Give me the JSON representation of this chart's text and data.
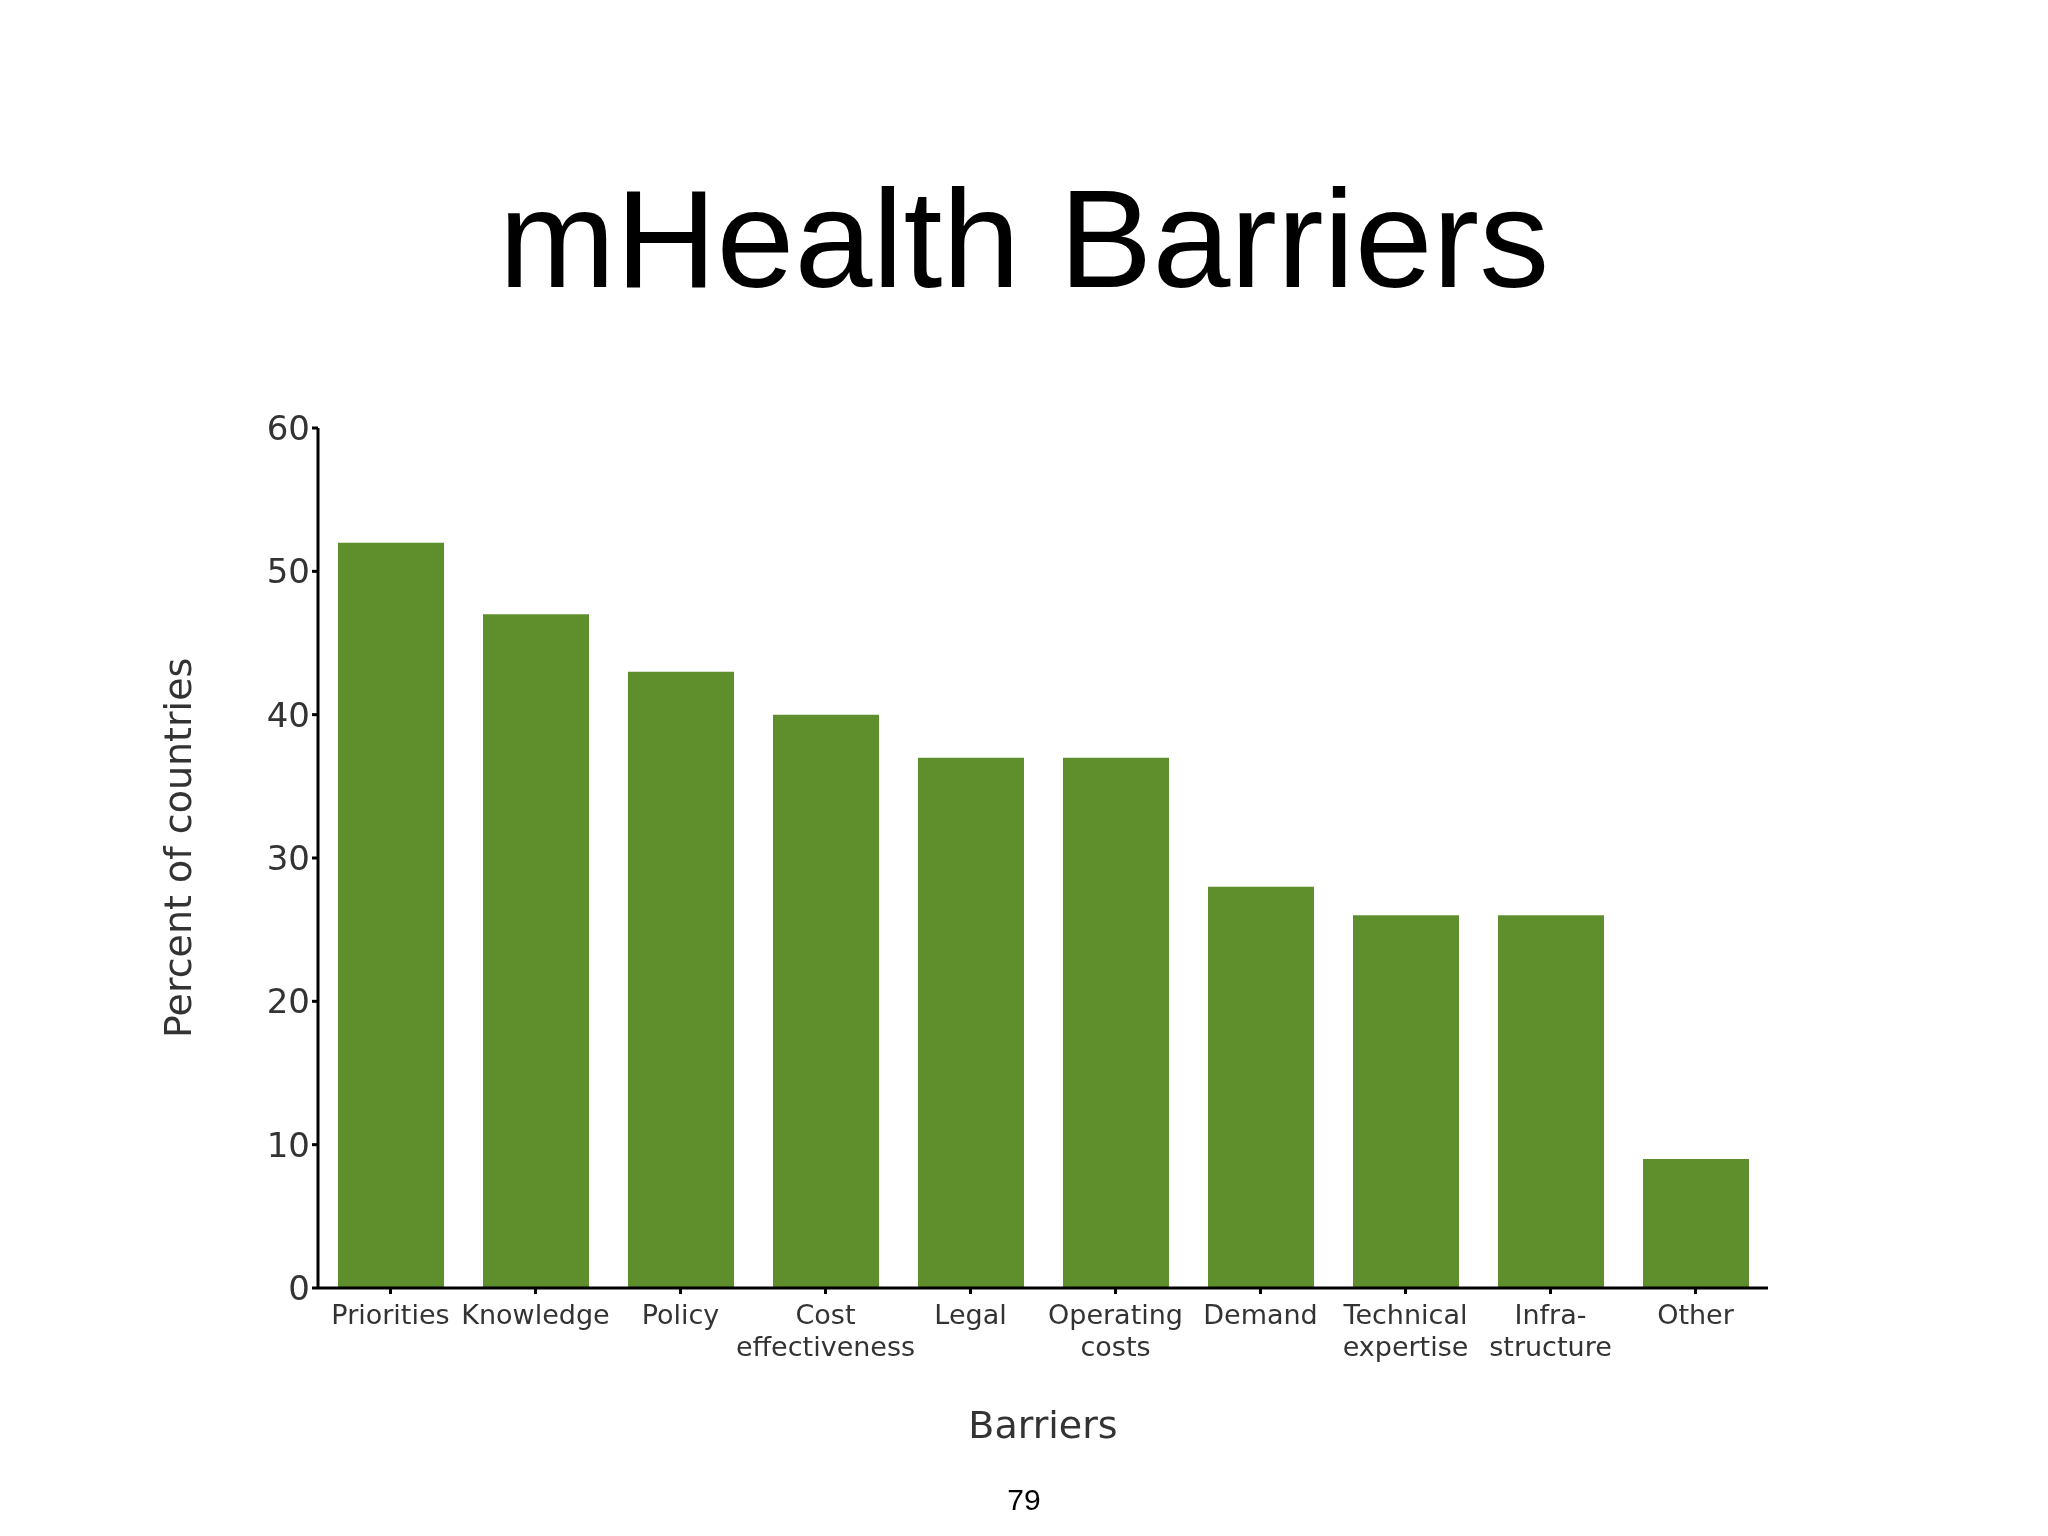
{
  "chart_data": {
    "type": "bar",
    "title": "mHealth Barriers",
    "categories": [
      "Priorities",
      "Knowledge",
      "Policy",
      "Cost\neffectiveness",
      "Legal",
      "Operating\ncosts",
      "Demand",
      "Technical\nexpertise",
      "Infra-\nstructure",
      "Other"
    ],
    "values": [
      52,
      47,
      43,
      40,
      37,
      37,
      28,
      26,
      26,
      9
    ],
    "color": "#5e8f2c",
    "xlabel": "Barriers",
    "ylabel": "Percent of countries",
    "ylim": [
      0,
      60
    ],
    "yticks": [
      0,
      10,
      20,
      30,
      40,
      50,
      60
    ],
    "annotations": [
      "79"
    ]
  }
}
